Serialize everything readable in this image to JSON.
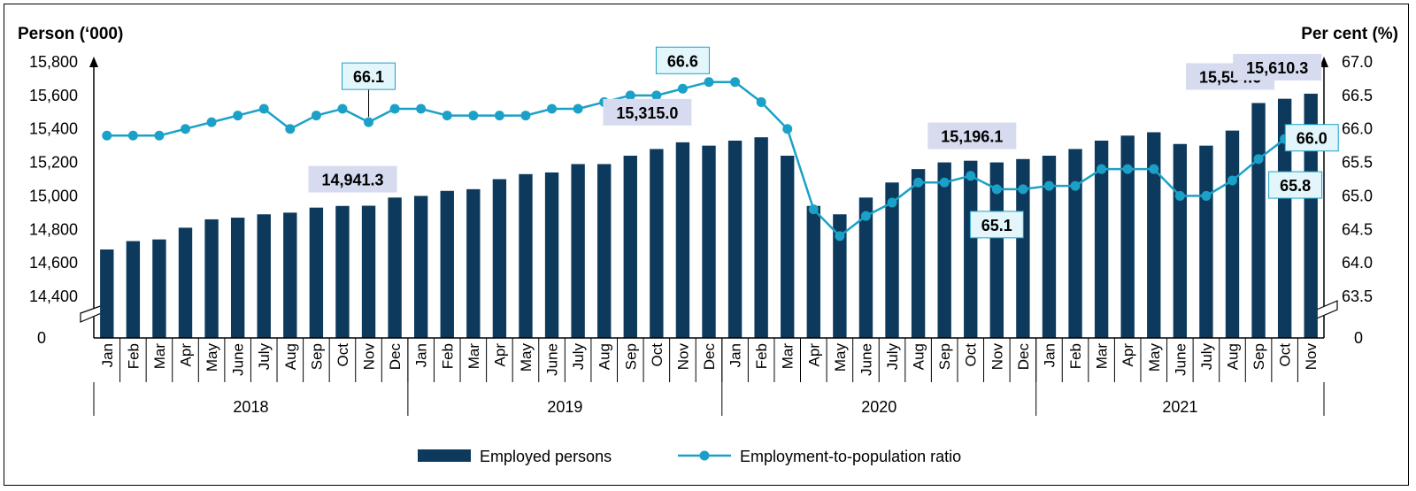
{
  "chart_data": {
    "type": "bar+line",
    "title": "",
    "left_axis": {
      "title": "Person (‘000)",
      "ticks": [
        "0",
        "14,400",
        "14,600",
        "14,800",
        "15,000",
        "15,200",
        "15,400",
        "15,600",
        "15,800"
      ],
      "range": [
        14400,
        15800
      ],
      "broken": true
    },
    "right_axis": {
      "title": "Per cent (%)",
      "ticks": [
        "0",
        "63.5",
        "64.0",
        "64.5",
        "65.0",
        "65.5",
        "66.0",
        "66.5",
        "67.0"
      ],
      "range": [
        63.5,
        67.0
      ],
      "broken": true
    },
    "months": [
      "Jan",
      "Feb",
      "Mar",
      "Apr",
      "May",
      "June",
      "July",
      "Aug",
      "Sep",
      "Oct",
      "Nov",
      "Dec",
      "Jan",
      "Feb",
      "Mar",
      "Apr",
      "May",
      "June",
      "July",
      "Aug",
      "Sep",
      "Oct",
      "Nov",
      "Dec",
      "Jan",
      "Feb",
      "Mar",
      "Apr",
      "May",
      "June",
      "July",
      "Aug",
      "Sep",
      "Oct",
      "Nov",
      "Dec",
      "Jan",
      "Feb",
      "Mar",
      "Apr",
      "May",
      "June",
      "July",
      "Aug",
      "Sep",
      "Oct",
      "Nov"
    ],
    "years": [
      {
        "label": "2018",
        "start": 0,
        "count": 12
      },
      {
        "label": "2019",
        "start": 12,
        "count": 12
      },
      {
        "label": "2020",
        "start": 24,
        "count": 12
      },
      {
        "label": "2021",
        "start": 36,
        "count": 11
      }
    ],
    "series": [
      {
        "name": "Employed persons",
        "type": "bar",
        "axis": "left",
        "color": "#0d3a5c",
        "values": [
          14680,
          14730,
          14740,
          14810,
          14860,
          14870,
          14890,
          14900,
          14930,
          14940,
          14941.3,
          14990,
          15000,
          15030,
          15040,
          15100,
          15130,
          15140,
          15190,
          15190,
          15240,
          15280,
          15320,
          15300,
          15330,
          15350,
          15240,
          14940,
          14890,
          14990,
          15080,
          15160,
          15200,
          15210,
          15200,
          15220,
          15240,
          15280,
          15330,
          15360,
          15380,
          15310,
          15300,
          15390,
          15554.6,
          15580,
          15610.3
        ]
      },
      {
        "name": "Employment-to-population ratio",
        "type": "line",
        "axis": "right",
        "color": "#1ba1c7",
        "values": [
          65.9,
          65.9,
          65.9,
          66.0,
          66.1,
          66.2,
          66.3,
          66.0,
          66.2,
          66.3,
          66.1,
          66.3,
          66.3,
          66.2,
          66.2,
          66.2,
          66.2,
          66.3,
          66.3,
          66.4,
          66.5,
          66.5,
          66.6,
          66.7,
          66.7,
          66.4,
          66.0,
          64.8,
          64.4,
          64.7,
          64.9,
          65.2,
          65.2,
          65.3,
          65.1,
          65.1,
          65.15,
          65.15,
          65.4,
          65.4,
          65.4,
          65.0,
          65.0,
          65.23,
          65.55,
          65.85,
          66.0
        ]
      }
    ],
    "annotations": [
      {
        "text": "14,941.3",
        "series": 0,
        "index": 10
      },
      {
        "text": "15,315.0",
        "series": 0,
        "index": 22
      },
      {
        "text": "15,196.1",
        "series": 0,
        "index": 34
      },
      {
        "text": "15,554.6",
        "series": 0,
        "index": 44
      },
      {
        "text": "15,610.3",
        "series": 0,
        "index": 46
      },
      {
        "text": "66.1",
        "series": 1,
        "index": 10
      },
      {
        "text": "66.6",
        "series": 1,
        "index": 22
      },
      {
        "text": "65.1",
        "series": 1,
        "index": 34
      },
      {
        "text": "65.8",
        "series": 1,
        "index": 45
      },
      {
        "text": "66.0",
        "series": 1,
        "index": 46
      }
    ],
    "legend": {
      "placement": "bottom",
      "items": [
        "Employed persons",
        "Employment-to-population ratio"
      ]
    },
    "bar_label_box_color": "#d6dbef",
    "line_label_box_color": "#e2f6fb",
    "line_label_border_color": "#1ba1c7"
  }
}
